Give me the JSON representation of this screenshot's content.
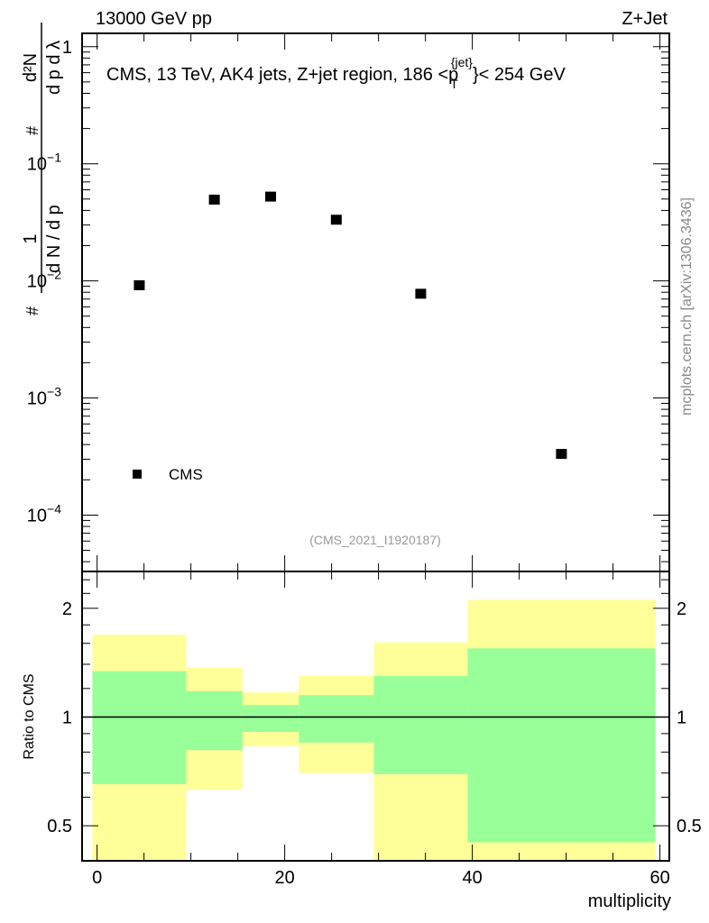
{
  "header": {
    "left": "13000 GeV pp",
    "right": "Z+Jet"
  },
  "side_label": "mcplots.cern.ch [arXiv:1306.3436]",
  "chart_data": [
    {
      "type": "scatter",
      "title": "CMS, 13 TeV, AK4 jets, Z+jet region, 186 <p_T^{jet}< 254 GeV",
      "title_parts": {
        "main": "CMS, 13 TeV, AK4 jets, Z+jet region, 186 <p",
        "sub": "T",
        "sup": "{jet}",
        "tail": "}< 254 GeV"
      },
      "ylabel": "1/(dN/dpT) d²N/(dpT dλ)",
      "ylabel_parts": {
        "n1": "1",
        "d1": "d N / d p",
        "n2": "d²N",
        "d2": "d p  d λ",
        "sub": "T",
        "hash": "#"
      },
      "yscale": "log",
      "ylim": [
        3.3e-05,
        1.3
      ],
      "xlim": [
        -1.6,
        61
      ],
      "ytick_labels": [
        {
          "value": 1,
          "label": "1",
          "exp": ""
        },
        {
          "value": 0.1,
          "label": "10",
          "exp": "−1"
        },
        {
          "value": 0.01,
          "label": "10",
          "exp": "−2"
        },
        {
          "value": 0.001,
          "label": "10",
          "exp": "−3"
        },
        {
          "value": 0.0001,
          "label": "10",
          "exp": "−4"
        }
      ],
      "series": [
        {
          "name": "CMS",
          "marker": "square",
          "color": "#000000",
          "x": [
            4.5,
            12.5,
            18.5,
            25.5,
            34.5,
            49.5
          ],
          "y": [
            0.0091,
            0.049,
            0.052,
            0.033,
            0.0077,
            0.00033
          ]
        }
      ],
      "legend": {
        "entry": "CMS",
        "placement": "bottom-left"
      },
      "annotation": "(CMS_2021_I1920187)"
    },
    {
      "type": "area",
      "ylabel": "Ratio to CMS",
      "xlabel": "multiplicity",
      "yscale": "log",
      "ylim": [
        0.4,
        2.53
      ],
      "xlim": [
        -1.6,
        61
      ],
      "xtick_labels": [
        "0",
        "20",
        "40",
        "60"
      ],
      "xticks": [
        0,
        20,
        40,
        60
      ],
      "ytick_labels": [
        "0.5",
        "1",
        "2"
      ],
      "yticks": [
        0.5,
        1,
        2
      ],
      "bin_edges": [
        -0.5,
        9.5,
        15.5,
        21.5,
        29.5,
        39.5,
        59.5
      ],
      "bands": [
        {
          "name": "outer",
          "color": "#ffff99",
          "low": [
            0.35,
            0.63,
            0.83,
            0.7,
            0.4,
            0.35
          ],
          "high": [
            1.69,
            1.37,
            1.17,
            1.3,
            1.61,
            2.11
          ]
        },
        {
          "name": "inner",
          "color": "#99ff99",
          "low": [
            0.652,
            0.81,
            0.91,
            0.85,
            0.695,
            0.45
          ],
          "high": [
            1.34,
            1.18,
            1.08,
            1.15,
            1.3,
            1.55
          ]
        }
      ],
      "reference_line": 1
    }
  ]
}
